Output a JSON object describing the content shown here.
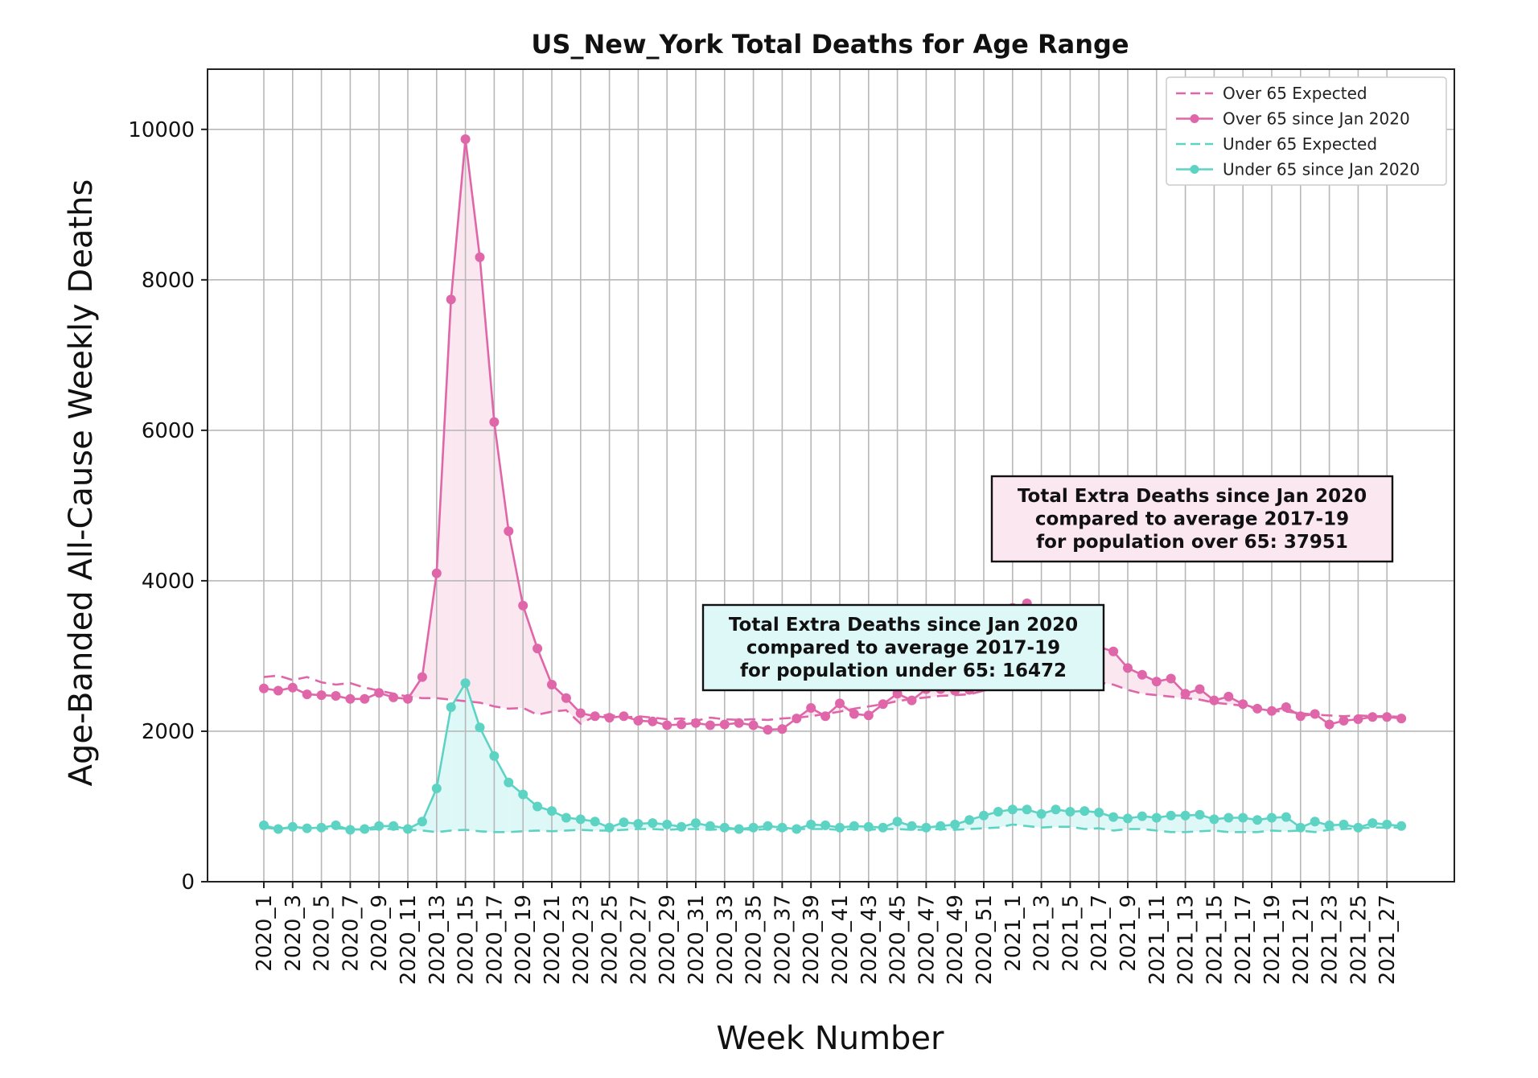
{
  "colors": {
    "over65": "#e066aa",
    "under65": "#5dd3c3",
    "over65_fill": "#fbe7ef",
    "under65_fill": "#def8f8",
    "grid": "#b8b8b8"
  },
  "chart_data": {
    "type": "line",
    "title": "US_New_York Total Deaths for Age Range",
    "xlabel": "Week Number",
    "ylabel": "Age-Banded All-Cause Weekly Deaths",
    "ylim": [
      0,
      10800
    ],
    "yticks": [
      0,
      2000,
      4000,
      6000,
      8000,
      10000
    ],
    "grid": true,
    "legend_position": "top-right",
    "x": [
      "2020_1",
      "2020_2",
      "2020_3",
      "2020_4",
      "2020_5",
      "2020_6",
      "2020_7",
      "2020_8",
      "2020_9",
      "2020_10",
      "2020_11",
      "2020_12",
      "2020_13",
      "2020_14",
      "2020_15",
      "2020_16",
      "2020_17",
      "2020_18",
      "2020_19",
      "2020_20",
      "2020_21",
      "2020_22",
      "2020_23",
      "2020_24",
      "2020_25",
      "2020_26",
      "2020_27",
      "2020_28",
      "2020_29",
      "2020_30",
      "2020_31",
      "2020_32",
      "2020_33",
      "2020_34",
      "2020_35",
      "2020_36",
      "2020_37",
      "2020_38",
      "2020_39",
      "2020_40",
      "2020_41",
      "2020_42",
      "2020_43",
      "2020_44",
      "2020_45",
      "2020_46",
      "2020_47",
      "2020_48",
      "2020_49",
      "2020_50",
      "2020_51",
      "2020_52",
      "2021_1",
      "2021_2",
      "2021_3",
      "2021_4",
      "2021_5",
      "2021_6",
      "2021_7",
      "2021_8",
      "2021_9",
      "2021_10",
      "2021_11",
      "2021_12",
      "2021_13",
      "2021_14",
      "2021_15",
      "2021_16",
      "2021_17",
      "2021_18",
      "2021_19",
      "2021_20",
      "2021_21",
      "2021_22",
      "2021_23",
      "2021_24",
      "2021_25",
      "2021_26",
      "2021_27",
      "2021_28"
    ],
    "xtick_labels": [
      "2020_1",
      "2020_3",
      "2020_5",
      "2020_7",
      "2020_9",
      "2020_11",
      "2020_13",
      "2020_15",
      "2020_17",
      "2020_19",
      "2020_21",
      "2020_23",
      "2020_25",
      "2020_27",
      "2020_29",
      "2020_31",
      "2020_33",
      "2020_35",
      "2020_37",
      "2020_39",
      "2020_41",
      "2020_43",
      "2020_45",
      "2020_47",
      "2020_49",
      "2020_51",
      "2021_1",
      "2021_3",
      "2021_5",
      "2021_7",
      "2021_9",
      "2021_11",
      "2021_13",
      "2021_15",
      "2021_17",
      "2021_19",
      "2021_21",
      "2021_23",
      "2021_25",
      "2021_27"
    ],
    "series": [
      {
        "name": "Over 65 Expected",
        "style": "dashed",
        "values": [
          2720,
          2740,
          2680,
          2720,
          2650,
          2620,
          2640,
          2580,
          2540,
          2500,
          2460,
          2440,
          2440,
          2420,
          2400,
          2380,
          2330,
          2300,
          2310,
          2220,
          2260,
          2280,
          2100,
          2200,
          2220,
          2180,
          2200,
          2180,
          2160,
          2170,
          2140,
          2180,
          2160,
          2150,
          2160,
          2150,
          2170,
          2180,
          2200,
          2230,
          2260,
          2300,
          2330,
          2360,
          2400,
          2430,
          2450,
          2470,
          2480,
          2490,
          2540,
          2560,
          2600,
          2620,
          2650,
          2640,
          2660,
          2700,
          2650,
          2620,
          2550,
          2500,
          2480,
          2460,
          2440,
          2420,
          2380,
          2360,
          2340,
          2300,
          2270,
          2260,
          2240,
          2220,
          2210,
          2200,
          2210,
          2200,
          2200,
          2190
        ]
      },
      {
        "name": "Over 65 since Jan 2020",
        "style": "solid-marker",
        "values": [
          2570,
          2540,
          2580,
          2490,
          2480,
          2470,
          2430,
          2430,
          2510,
          2450,
          2430,
          2720,
          4100,
          7740,
          9870,
          8300,
          6110,
          4660,
          3670,
          3100,
          2620,
          2440,
          2240,
          2200,
          2180,
          2200,
          2140,
          2130,
          2080,
          2090,
          2110,
          2080,
          2090,
          2110,
          2080,
          2020,
          2030,
          2170,
          2310,
          2200,
          2370,
          2230,
          2210,
          2360,
          2500,
          2410,
          2560,
          2560,
          2540,
          2550,
          2590,
          3150,
          3640,
          3700,
          3560,
          3300,
          3150,
          3200,
          3120,
          3060,
          2840,
          2750,
          2660,
          2700,
          2500,
          2560,
          2410,
          2460,
          2360,
          2300,
          2270,
          2320,
          2200,
          2230,
          2090,
          2140,
          2160,
          2190,
          2190,
          2170
        ]
      },
      {
        "name": "Under 65 Expected",
        "style": "dashed",
        "values": [
          720,
          700,
          720,
          710,
          700,
          710,
          700,
          690,
          700,
          700,
          690,
          680,
          660,
          680,
          690,
          670,
          660,
          660,
          670,
          680,
          670,
          680,
          690,
          680,
          680,
          690,
          700,
          700,
          690,
          700,
          700,
          690,
          700,
          700,
          690,
          700,
          690,
          700,
          700,
          700,
          690,
          700,
          690,
          700,
          700,
          690,
          690,
          700,
          690,
          700,
          710,
          720,
          760,
          740,
          720,
          730,
          730,
          700,
          710,
          680,
          700,
          700,
          680,
          660,
          660,
          670,
          680,
          660,
          660,
          660,
          680,
          670,
          680,
          660,
          690,
          700,
          710,
          720,
          720,
          720
        ]
      },
      {
        "name": "Under 65 since Jan 2020",
        "style": "solid-marker",
        "values": [
          750,
          700,
          730,
          710,
          720,
          750,
          690,
          700,
          740,
          740,
          700,
          800,
          1240,
          2320,
          2640,
          2050,
          1670,
          1320,
          1160,
          1000,
          940,
          850,
          830,
          800,
          720,
          790,
          770,
          780,
          760,
          730,
          780,
          740,
          720,
          700,
          720,
          740,
          720,
          700,
          760,
          750,
          720,
          740,
          730,
          720,
          800,
          740,
          720,
          740,
          760,
          820,
          880,
          930,
          960,
          960,
          900,
          960,
          930,
          940,
          920,
          860,
          840,
          870,
          850,
          880,
          880,
          890,
          830,
          850,
          850,
          820,
          850,
          860,
          720,
          800,
          750,
          760,
          720,
          780,
          760,
          740
        ]
      }
    ],
    "annotations": [
      {
        "name": "over65-box",
        "lines": [
          "Total Extra Deaths since Jan 2020",
          "compared to average 2017-19",
          "for population over 65: 37951"
        ]
      },
      {
        "name": "under65-box",
        "lines": [
          "Total Extra Deaths since Jan 2020",
          "compared to average 2017-19",
          "for population under 65: 16472"
        ]
      }
    ]
  }
}
